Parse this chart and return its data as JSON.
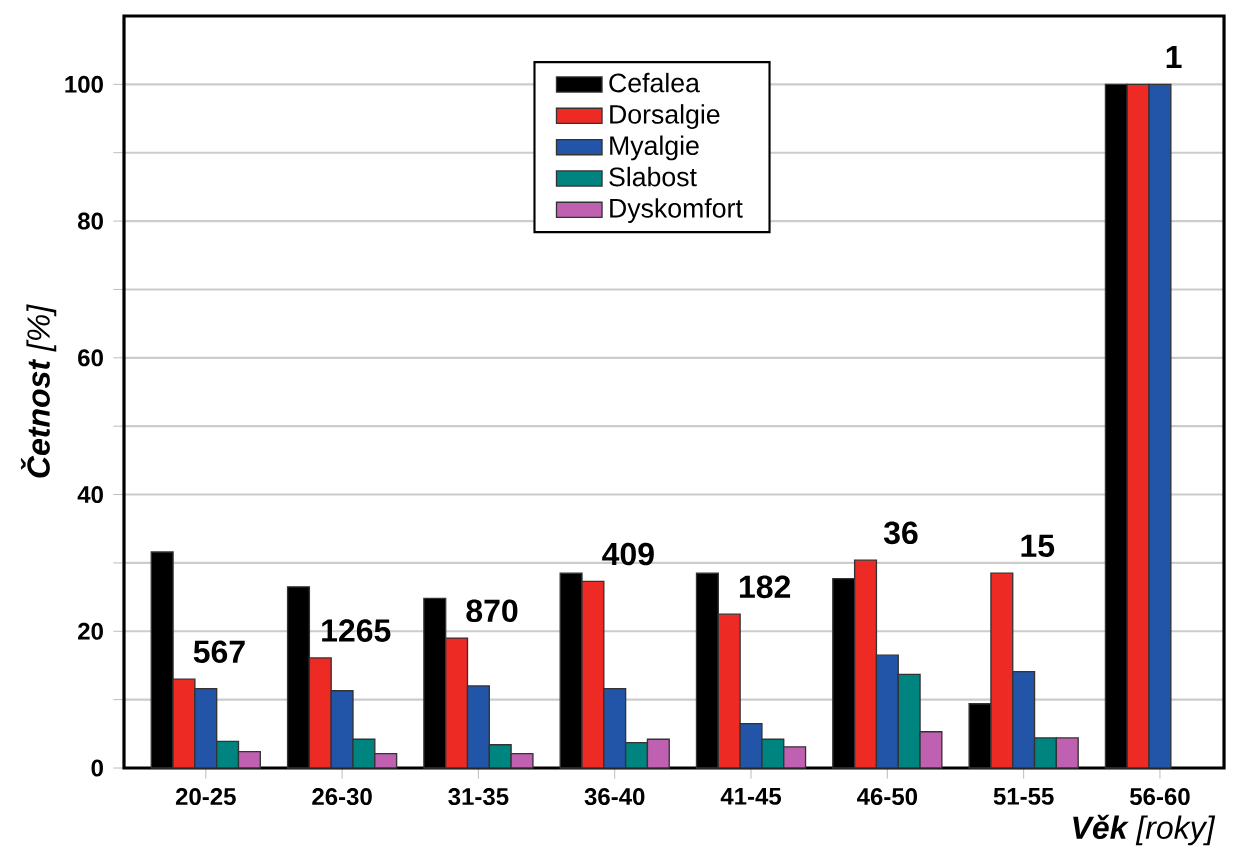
{
  "chart_data": {
    "type": "bar",
    "xlabel": "**Věk** [roky]",
    "ylabel": "**Četnost** [%]",
    "categories": [
      "20-25",
      "26-30",
      "31-35",
      "36-40",
      "41-45",
      "46-50",
      "51-55",
      "56-60"
    ],
    "series": [
      {
        "name": "Cefalea",
        "color": "#000000",
        "values": [
          31.6,
          26.5,
          24.8,
          28.5,
          28.5,
          27.7,
          9.4,
          100
        ]
      },
      {
        "name": "Dorsalgie",
        "color": "#ee2a24",
        "values": [
          13.0,
          16.1,
          19.0,
          27.3,
          22.5,
          30.4,
          28.5,
          100
        ]
      },
      {
        "name": "Myalgie",
        "color": "#2255a8",
        "values": [
          11.6,
          11.3,
          12.0,
          11.6,
          6.5,
          16.5,
          14.1,
          100
        ]
      },
      {
        "name": "Slabost",
        "color": "#00847f",
        "values": [
          3.9,
          4.2,
          3.4,
          3.7,
          4.2,
          13.7,
          4.4,
          null
        ]
      },
      {
        "name": "Dyskomfort",
        "color": "#c060b0",
        "values": [
          2.4,
          2.1,
          2.1,
          4.2,
          3.1,
          5.3,
          4.4,
          null
        ]
      }
    ],
    "annotations": [
      "567",
      "1265",
      "870",
      "409",
      "182",
      "36",
      "15",
      "1"
    ],
    "ylim": [
      0,
      110
    ],
    "yticks": [
      0,
      {
        "value": 10,
        "label": null
      },
      20,
      {
        "value": 30,
        "label": null
      },
      40,
      {
        "value": 50,
        "label": null
      },
      60,
      {
        "value": 70,
        "label": null
      },
      80,
      {
        "value": 90,
        "label": null
      },
      100
    ],
    "grid": "y",
    "legend": "top"
  }
}
